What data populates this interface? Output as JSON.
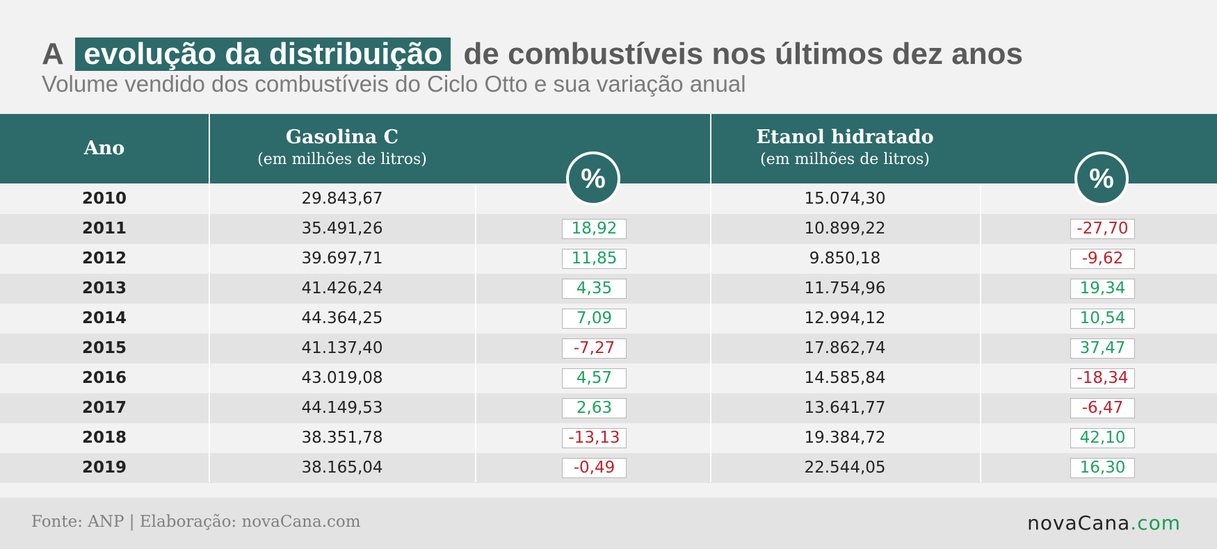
{
  "title": {
    "prefix": "A",
    "highlight": "evolução da distribuição",
    "suffix": "de combustíveis nos últimos dez anos"
  },
  "subtitle": "Volume vendido dos combustíveis do Ciclo Otto e sua variação anual",
  "colors": {
    "header": "#2d6a6a",
    "positive": "#1aa35e",
    "negative": "#c4202a"
  },
  "chart_data": {
    "type": "table",
    "columns": {
      "year": "Ano",
      "gasoline": "Gasolina C",
      "gasoline_unit": "(em milhões de litros)",
      "gasoline_pct": "%",
      "ethanol": "Etanol hidratado",
      "ethanol_unit": "(em milhões de litros)",
      "ethanol_pct": "%"
    },
    "rows": [
      {
        "year": "2010",
        "gasoline": "29.843,67",
        "gasoline_pct": "",
        "ethanol": "15.074,30",
        "ethanol_pct": ""
      },
      {
        "year": "2011",
        "gasoline": "35.491,26",
        "gasoline_pct": "18,92",
        "ethanol": "10.899,22",
        "ethanol_pct": "-27,70"
      },
      {
        "year": "2012",
        "gasoline": "39.697,71",
        "gasoline_pct": "11,85",
        "ethanol": "9.850,18",
        "ethanol_pct": "-9,62"
      },
      {
        "year": "2013",
        "gasoline": "41.426,24",
        "gasoline_pct": "4,35",
        "ethanol": "11.754,96",
        "ethanol_pct": "19,34"
      },
      {
        "year": "2014",
        "gasoline": "44.364,25",
        "gasoline_pct": "7,09",
        "ethanol": "12.994,12",
        "ethanol_pct": "10,54"
      },
      {
        "year": "2015",
        "gasoline": "41.137,40",
        "gasoline_pct": "-7,27",
        "ethanol": "17.862,74",
        "ethanol_pct": "37,47"
      },
      {
        "year": "2016",
        "gasoline": "43.019,08",
        "gasoline_pct": "4,57",
        "ethanol": "14.585,84",
        "ethanol_pct": "-18,34"
      },
      {
        "year": "2017",
        "gasoline": "44.149,53",
        "gasoline_pct": "2,63",
        "ethanol": "13.641,77",
        "ethanol_pct": "-6,47"
      },
      {
        "year": "2018",
        "gasoline": "38.351,78",
        "gasoline_pct": "-13,13",
        "ethanol": "19.384,72",
        "ethanol_pct": "42,10"
      },
      {
        "year": "2019",
        "gasoline": "38.165,04",
        "gasoline_pct": "-0,49",
        "ethanol": "22.544,05",
        "ethanol_pct": "16,30"
      }
    ]
  },
  "footer": {
    "source": "Fonte: ANP | Elaboração: novaCana.com",
    "logo_main": "novaCana",
    "logo_suffix": ".com"
  }
}
